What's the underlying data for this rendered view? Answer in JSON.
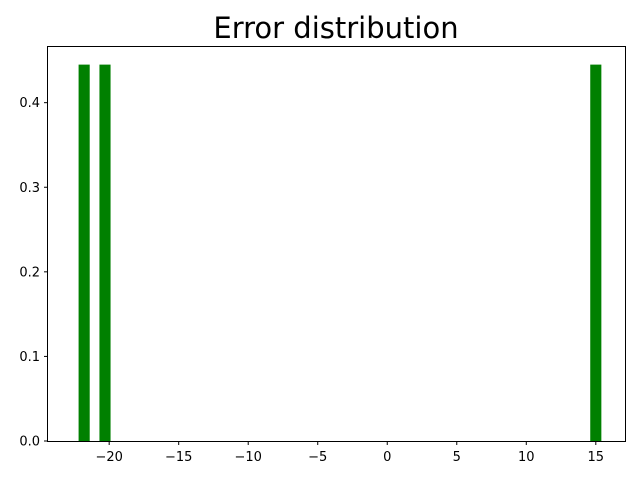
{
  "chart_data": {
    "type": "bar",
    "title": "Error distribution",
    "xlabel": "",
    "ylabel": "",
    "xlim": [
      -24.4,
      17.1
    ],
    "ylim": [
      0,
      0.467
    ],
    "grid": false,
    "bar_color": "#008000",
    "bars": [
      {
        "x0": -22.2,
        "x1": -21.4,
        "value": 0.445
      },
      {
        "x0": -20.7,
        "x1": -19.9,
        "value": 0.445
      },
      {
        "x0": 14.6,
        "x1": 15.4,
        "value": 0.445
      }
    ],
    "x_ticks": [
      {
        "value": -20,
        "label": "−20"
      },
      {
        "value": -15,
        "label": "−15"
      },
      {
        "value": -10,
        "label": "−10"
      },
      {
        "value": -5,
        "label": "−5"
      },
      {
        "value": 0,
        "label": "0"
      },
      {
        "value": 5,
        "label": "5"
      },
      {
        "value": 10,
        "label": "10"
      },
      {
        "value": 15,
        "label": "15"
      }
    ],
    "y_ticks": [
      {
        "value": 0.0,
        "label": "0.0"
      },
      {
        "value": 0.1,
        "label": "0.1"
      },
      {
        "value": 0.2,
        "label": "0.2"
      },
      {
        "value": 0.3,
        "label": "0.3"
      },
      {
        "value": 0.4,
        "label": "0.4"
      }
    ]
  }
}
